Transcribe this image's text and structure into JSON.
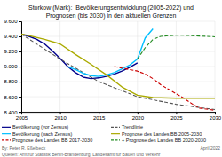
{
  "chart_data": {
    "type": "line",
    "title": "Storkow (Mark):  Bevölkerungsentwicklung (2005-2022) und\nPrognosen (bis 2030) in den aktuellen Grenzen",
    "xlim": [
      2005,
      2030
    ],
    "ylim": [
      8400,
      9600
    ],
    "xticks": [
      2005,
      2010,
      2015,
      2020,
      2025,
      2030
    ],
    "yticks": [
      {
        "value": 8400,
        "label": "8.400"
      },
      {
        "value": 8600,
        "label": "8.600"
      },
      {
        "value": 8800,
        "label": "8.800"
      },
      {
        "value": 9000,
        "label": "9.000"
      },
      {
        "value": 9200,
        "label": "9.200"
      },
      {
        "value": 9400,
        "label": "9.400"
      },
      {
        "value": 9600,
        "label": "9.600"
      }
    ],
    "grid": true,
    "legend": "bottom",
    "series": [
      {
        "name": "Bevölkerung (vor Zensus)",
        "color": "#00008B",
        "line_style": "solid",
        "x": [
          2005,
          2006,
          2007,
          2008,
          2009,
          2010,
          2011,
          2012,
          2013,
          2014,
          2015,
          2016,
          2017,
          2018,
          2019,
          2020
        ],
        "values": [
          9430,
          9400,
          9360,
          9300,
          9210,
          9110,
          9000,
          8920,
          8860,
          8840,
          8850,
          8870,
          8900,
          8940,
          8990,
          9050
        ]
      },
      {
        "name": "Trendlinie",
        "color": "#555555",
        "line_style": "dashed",
        "x": [
          2005,
          2010,
          2015,
          2020,
          2025,
          2030
        ],
        "values": [
          9430,
          9100,
          8800,
          8600,
          8500,
          8430
        ]
      },
      {
        "name": "Bevölkerung (nach Zensus)",
        "color": "#00BFFF",
        "line_style": "solid",
        "x": [
          2011,
          2012,
          2013,
          2014,
          2015,
          2016,
          2017,
          2018,
          2019,
          2020,
          2021,
          2022
        ],
        "values": [
          9000,
          8960,
          8910,
          8880,
          8870,
          8890,
          8920,
          8970,
          9020,
          9100,
          9380,
          9500
        ]
      },
      {
        "name": "Prognose des Landes BB 2005-2030",
        "color": "#AAAA00",
        "line_style": "solid",
        "x": [
          2005,
          2006,
          2008,
          2010,
          2012,
          2014,
          2016,
          2018,
          2020,
          2022,
          2025,
          2030
        ],
        "values": [
          9430,
          9410,
          9360,
          9300,
          9160,
          9030,
          8890,
          8730,
          8620,
          8590,
          8580,
          8580
        ]
      },
      {
        "name": "Prognose des Landes BB 2017-2030",
        "color": "#CC0000",
        "line_style": "dashed",
        "x": [
          2017,
          2018,
          2019,
          2020,
          2021,
          2022,
          2023,
          2024,
          2025,
          2026,
          2027,
          2028,
          2030
        ],
        "values": [
          9000,
          8980,
          8960,
          8940,
          8900,
          8840,
          8760,
          8700,
          8640,
          8580,
          8510,
          8450,
          8420
        ]
      },
      {
        "name": "+ Prognose des Landes BB 2020-2030",
        "color": "#228B22",
        "line_style": "dashed",
        "x": [
          2020,
          2021,
          2022,
          2023,
          2024,
          2025,
          2026,
          2027,
          2028,
          2029,
          2030
        ],
        "values": [
          9100,
          9250,
          9360,
          9400,
          9410,
          9415,
          9415,
          9410,
          9405,
          9400,
          9395
        ]
      }
    ],
    "annotations": [
      "By: Peter R. Eßelbeck",
      "Quellen: Amt für Statistik Berlin-Brandenburg, Landesamt für Bauen und Verkehr",
      "April 2022"
    ]
  }
}
